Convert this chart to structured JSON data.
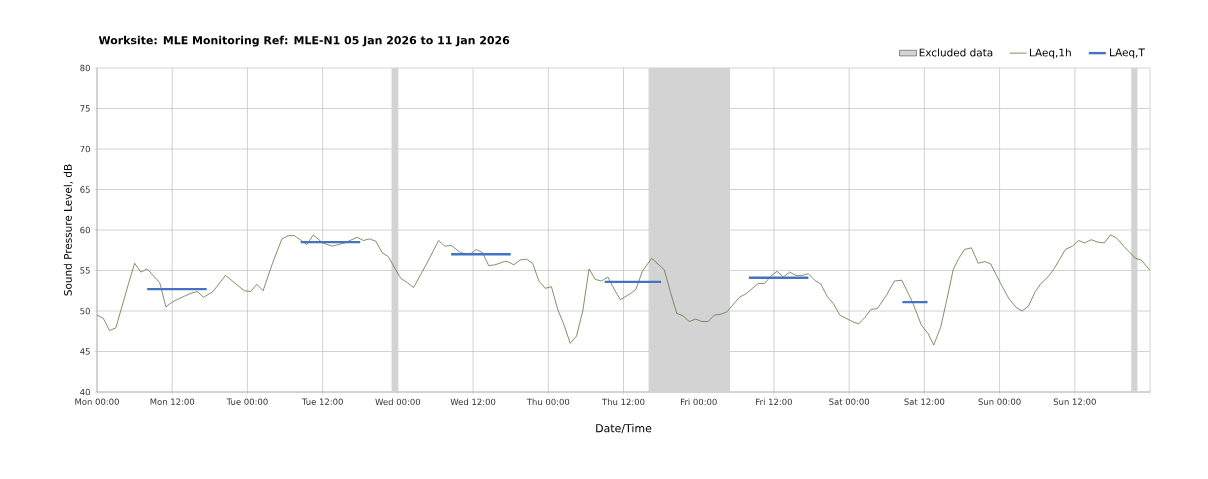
{
  "chart_data": {
    "type": "line",
    "title": "**Worksite: MLE    Monitoring Ref: MLE-N1     05 Jan 2026 to 11 Jan 2026**",
    "xlabel": "Date/Time",
    "ylabel": "Sound Pressure Level, dB",
    "xlim": [
      "2026-01-05T00:00",
      "2026-01-12T00:00"
    ],
    "ylim": [
      40,
      80
    ],
    "xticks": [
      {
        "value": "2026-01-05T00:00",
        "label": "Mon 00:00"
      },
      {
        "value": "2026-01-05T12:00",
        "label": "Mon 12:00"
      },
      {
        "value": "2026-01-06T00:00",
        "label": "Tue 00:00"
      },
      {
        "value": "2026-01-06T12:00",
        "label": "Tue 12:00"
      },
      {
        "value": "2026-01-07T00:00",
        "label": "Wed 00:00"
      },
      {
        "value": "2026-01-07T12:00",
        "label": "Wed 12:00"
      },
      {
        "value": "2026-01-08T00:00",
        "label": "Thu 00:00"
      },
      {
        "value": "2026-01-08T12:00",
        "label": "Thu 12:00"
      },
      {
        "value": "2026-01-09T00:00",
        "label": "Fri 00:00"
      },
      {
        "value": "2026-01-09T12:00",
        "label": "Fri 12:00"
      },
      {
        "value": "2026-01-10T00:00",
        "label": "Sat 00:00"
      },
      {
        "value": "2026-01-10T12:00",
        "label": "Sat 12:00"
      },
      {
        "value": "2026-01-11T00:00",
        "label": "Sun 00:00"
      },
      {
        "value": "2026-01-11T12:00",
        "label": "Sun 12:00"
      },
      {
        "value": "2026-01-12T00:00",
        "label": null
      }
    ],
    "yticks": [
      40,
      45,
      50,
      55,
      60,
      65,
      70,
      75,
      80
    ],
    "grid": true,
    "legend": "top right",
    "marker": "none",
    "line_style": "solid",
    "bands": [
      {
        "axis": "x",
        "from": "2026-01-06T23:00",
        "to": "2026-01-07T00:00",
        "label": "Excluded data",
        "color": "#d3d3d3"
      },
      {
        "axis": "x",
        "from": "2026-01-08T16:00",
        "to": "2026-01-09T05:00",
        "color": "#d3d3d3"
      },
      {
        "axis": "x",
        "from": "2026-01-11T21:00",
        "to": "2026-01-11T22:00",
        "color": "#d3d3d3"
      }
    ],
    "series": [
      {
        "name": "LAeq,1h",
        "type": "line",
        "color": "#5b7a3c",
        "x": [
          "2026-01-05T00:00",
          "2026-01-05T01:00",
          "2026-01-05T02:00",
          "2026-01-05T03:00",
          "2026-01-05T05:00",
          "2026-01-05T06:00",
          "2026-01-05T07:00",
          "2026-01-05T08:00",
          "2026-01-05T10:00",
          "2026-01-05T11:00",
          "2026-01-05T12:00",
          "2026-01-05T13:00",
          "2026-01-05T15:00",
          "2026-01-05T16:00",
          "2026-01-05T17:00",
          "2026-01-05T18:30",
          "2026-01-05T20:30",
          "2026-01-05T23:30",
          "2026-01-06T00:30",
          "2026-01-06T01:30",
          "2026-01-06T02:30",
          "2026-01-06T04:00",
          "2026-01-06T05:30",
          "2026-01-06T06:30",
          "2026-01-06T07:30",
          "2026-01-06T09:30",
          "2026-01-06T10:30",
          "2026-01-06T12:00",
          "2026-01-06T13:30",
          "2026-01-06T15:30",
          "2026-01-06T17:30",
          "2026-01-06T18:30",
          "2026-01-06T19:30",
          "2026-01-06T20:30",
          "2026-01-06T21:30",
          "2026-01-06T22:30",
          "2026-01-06T23:30",
          "2026-01-07T00:30",
          "2026-01-07T01:30",
          "2026-01-07T02:30",
          "2026-01-07T04:30",
          "2026-01-07T06:30",
          "2026-01-07T07:30",
          "2026-01-07T08:30",
          "2026-01-07T10:00",
          "2026-01-07T11:30",
          "2026-01-07T12:30",
          "2026-01-07T13:30",
          "2026-01-07T14:30",
          "2026-01-07T15:30",
          "2026-01-07T17:00",
          "2026-01-07T17:30",
          "2026-01-07T18:30",
          "2026-01-07T19:30",
          "2026-01-07T20:30",
          "2026-01-07T21:30",
          "2026-01-07T22:30",
          "2026-01-07T23:30",
          "2026-01-08T00:30",
          "2026-01-08T01:30",
          "2026-01-08T02:30",
          "2026-01-08T03:30",
          "2026-01-08T04:30",
          "2026-01-08T05:30",
          "2026-01-08T06:30",
          "2026-01-08T07:30",
          "2026-01-08T08:30",
          "2026-01-08T09:30",
          "2026-01-08T10:30",
          "2026-01-08T11:30",
          "2026-01-08T13:00",
          "2026-01-08T14:00",
          "2026-01-08T15:00",
          "2026-01-08T16:30",
          "2026-01-08T18:30",
          "2026-01-08T19:30",
          "2026-01-08T20:30",
          "2026-01-08T21:30",
          "2026-01-08T22:30",
          "2026-01-08T23:30",
          "2026-01-09T00:30",
          "2026-01-09T01:30",
          "2026-01-09T02:30",
          "2026-01-09T03:30",
          "2026-01-09T04:30",
          "2026-01-09T06:30",
          "2026-01-09T07:30",
          "2026-01-09T09:30",
          "2026-01-09T10:30",
          "2026-01-09T11:30",
          "2026-01-09T12:30",
          "2026-01-09T13:30",
          "2026-01-09T14:30",
          "2026-01-09T15:30",
          "2026-01-09T16:30",
          "2026-01-09T17:30",
          "2026-01-09T18:30",
          "2026-01-09T19:30",
          "2026-01-09T20:30",
          "2026-01-09T21:30",
          "2026-01-09T22:30",
          "2026-01-10T00:30",
          "2026-01-10T01:30",
          "2026-01-10T02:30",
          "2026-01-10T03:30",
          "2026-01-10T04:30",
          "2026-01-10T06:00",
          "2026-01-10T07:12",
          "2026-01-10T08:24",
          "2026-01-10T10:06",
          "2026-01-10T11:30",
          "2026-01-10T12:36",
          "2026-01-10T13:30",
          "2026-01-10T14:36",
          "2026-01-10T15:30",
          "2026-01-10T16:36",
          "2026-01-10T17:30",
          "2026-01-10T18:24",
          "2026-01-10T19:30",
          "2026-01-10T20:36",
          "2026-01-10T21:42",
          "2026-01-10T22:36",
          "2026-01-11T00:06",
          "2026-01-11T01:30",
          "2026-01-11T02:42",
          "2026-01-11T03:36",
          "2026-01-11T04:36",
          "2026-01-11T05:42",
          "2026-01-11T06:36",
          "2026-01-11T07:36",
          "2026-01-11T08:36",
          "2026-01-11T10:30",
          "2026-01-11T11:36",
          "2026-01-11T12:36",
          "2026-01-11T13:36",
          "2026-01-11T14:36",
          "2026-01-11T15:42",
          "2026-01-11T16:42",
          "2026-01-11T17:42",
          "2026-01-11T18:42",
          "2026-01-11T19:48",
          "2026-01-11T21:42",
          "2026-01-11T22:36",
          "2026-01-12T00:00"
        ],
        "values": [
          49.5,
          49.1,
          47.6,
          47.9,
          53.3,
          55.9,
          54.8,
          55.2,
          53.5,
          50.5,
          51.1,
          51.5,
          52.2,
          52.4,
          51.7,
          52.4,
          54.4,
          52.5,
          52.4,
          53.3,
          52.5,
          55.9,
          58.9,
          59.3,
          59.3,
          58.2,
          59.4,
          58.4,
          58.0,
          58.4,
          59.1,
          58.7,
          58.9,
          58.6,
          57.2,
          56.7,
          55.3,
          54.0,
          53.5,
          52.9,
          55.7,
          58.7,
          58.0,
          58.1,
          57.2,
          57.0,
          57.6,
          57.2,
          55.6,
          55.7,
          56.1,
          56.1,
          55.7,
          56.3,
          56.4,
          55.9,
          53.7,
          52.8,
          53.0,
          50.2,
          48.3,
          46.0,
          46.9,
          50.0,
          55.2,
          53.9,
          53.7,
          54.2,
          52.7,
          51.4,
          52.1,
          52.7,
          54.9,
          56.5,
          55.1,
          52.3,
          49.7,
          49.4,
          48.7,
          49.0,
          48.7,
          48.7,
          49.5,
          49.6,
          49.9,
          51.7,
          52.1,
          53.4,
          53.4,
          54.3,
          54.9,
          54.2,
          54.8,
          54.4,
          54.4,
          54.6,
          53.8,
          53.3,
          51.8,
          50.9,
          49.5,
          48.7,
          48.4,
          49.2,
          50.2,
          50.3,
          52.0,
          53.7,
          53.8,
          51.1,
          48.3,
          47.2,
          45.8,
          48.0,
          51.1,
          55.1,
          56.5,
          57.6,
          57.8,
          55.9,
          56.1,
          55.8,
          53.5,
          51.5,
          50.4,
          50.0,
          50.6,
          52.4,
          53.4,
          54.1,
          55.1,
          57.6,
          58.0,
          58.7,
          58.4,
          58.8,
          58.5,
          58.4,
          59.4,
          59.0,
          58.0,
          56.5,
          56.3,
          55.0
        ]
      },
      {
        "name": "LAeq,T",
        "type": "line",
        "color": "#4472c4",
        "x": [
          "2026-01-05T08:00",
          "2026-01-05T17:30",
          null,
          "2026-01-06T08:30",
          "2026-01-06T18:00",
          null,
          "2026-01-07T08:30",
          "2026-01-07T18:00",
          null,
          "2026-01-08T09:00",
          "2026-01-08T18:00",
          null,
          "2026-01-09T08:00",
          "2026-01-09T17:30",
          null,
          "2026-01-10T08:30",
          "2026-01-10T12:30"
        ],
        "values": [
          52.7,
          52.7,
          null,
          58.5,
          58.5,
          null,
          57.0,
          57.0,
          null,
          53.6,
          53.6,
          null,
          54.1,
          54.1,
          null,
          51.1,
          51.1
        ]
      }
    ]
  }
}
